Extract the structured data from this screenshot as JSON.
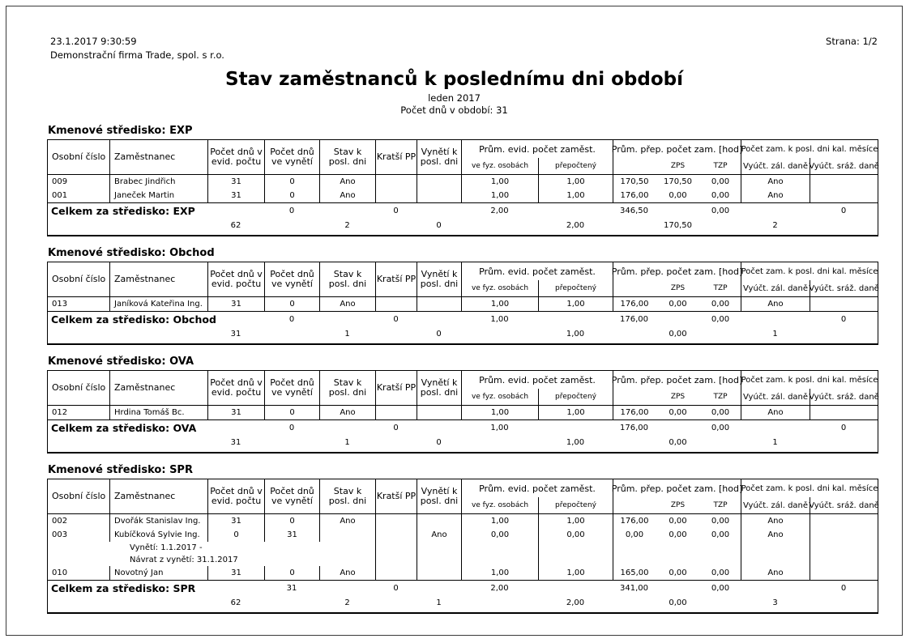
{
  "page": {
    "datetime": "23.1.2017 9:30:59",
    "company": "Demonstrační firma Trade, spol. s r.o.",
    "page_label": "Strana: 1/2",
    "title": "Stav zaměstnanců k poslednímu dni období",
    "subtitle_period": "leden 2017",
    "subtitle_days": "Počet dnů v období: 31"
  },
  "table_header": {
    "cols": [
      "Osobní číslo",
      "Zaměstnanec",
      "Počet dnů v\nevid. počtu",
      "Počet dnů\nve vynětí",
      "Stav k\nposl. dni",
      "Kratší PP",
      "Vynětí k\nposl. dni"
    ],
    "groups": [
      "Prům. evid. počet zaměst.",
      "Prům. přep. počet zam. [hod]",
      "Počet zam. k posl. dni kal. měsíce"
    ],
    "subs": [
      "ve fyz. osobách",
      "přepočtený",
      "",
      "ZPS",
      "TZP",
      "Vyúčt. zál. daně",
      "Vyúčt. sráž. daně"
    ]
  },
  "sections": [
    {
      "title": "Kmenové středisko: EXP",
      "rows": [
        {
          "id": "009",
          "name": "Brabec Jindřich",
          "evid": "31",
          "vyneti": "0",
          "stav": "Ano",
          "kratsi": "",
          "vyneti_posl": "",
          "fyz": "1,00",
          "prep": "1,00",
          "hod": "170,50",
          "zps": "170,50",
          "tzp": "0,00",
          "zal": "Ano",
          "sraz": "",
          "notes": []
        },
        {
          "id": "001",
          "name": "Janeček Martin",
          "evid": "31",
          "vyneti": "0",
          "stav": "Ano",
          "kratsi": "",
          "vyneti_posl": "",
          "fyz": "1,00",
          "prep": "1,00",
          "hod": "176,00",
          "zps": "0,00",
          "tzp": "0,00",
          "zal": "Ano",
          "sraz": "",
          "notes": []
        }
      ],
      "total_label": "Celkem za středisko: EXP",
      "total_row1": {
        "c4": "0",
        "c6": "0",
        "c8": "2,00",
        "c10": "346,50",
        "c12": "0,00",
        "c14": "0"
      },
      "total_row2": {
        "c3": "62",
        "c5": "2",
        "c7": "0",
        "c9": "2,00",
        "c11": "170,50",
        "c13": "2"
      }
    },
    {
      "title": "Kmenové středisko: Obchod",
      "rows": [
        {
          "id": "013",
          "name": "Janíková Kateřina Ing.",
          "evid": "31",
          "vyneti": "0",
          "stav": "Ano",
          "kratsi": "",
          "vyneti_posl": "",
          "fyz": "1,00",
          "prep": "1,00",
          "hod": "176,00",
          "zps": "0,00",
          "tzp": "0,00",
          "zal": "Ano",
          "sraz": "",
          "notes": []
        }
      ],
      "total_label": "Celkem za středisko: Obchod",
      "total_row1": {
        "c4": "0",
        "c6": "0",
        "c8": "1,00",
        "c10": "176,00",
        "c12": "0,00",
        "c14": "0"
      },
      "total_row2": {
        "c3": "31",
        "c5": "1",
        "c7": "0",
        "c9": "1,00",
        "c11": "0,00",
        "c13": "1"
      }
    },
    {
      "title": "Kmenové středisko: OVA",
      "rows": [
        {
          "id": "012",
          "name": "Hrdina Tomáš Bc.",
          "evid": "31",
          "vyneti": "0",
          "stav": "Ano",
          "kratsi": "",
          "vyneti_posl": "",
          "fyz": "1,00",
          "prep": "1,00",
          "hod": "176,00",
          "zps": "0,00",
          "tzp": "0,00",
          "zal": "Ano",
          "sraz": "",
          "notes": []
        }
      ],
      "total_label": "Celkem za středisko: OVA",
      "total_row1": {
        "c4": "0",
        "c6": "0",
        "c8": "1,00",
        "c10": "176,00",
        "c12": "0,00",
        "c14": "0"
      },
      "total_row2": {
        "c3": "31",
        "c5": "1",
        "c7": "0",
        "c9": "1,00",
        "c11": "0,00",
        "c13": "1"
      }
    },
    {
      "title": "Kmenové středisko: SPR",
      "rows": [
        {
          "id": "002",
          "name": "Dvořák Stanislav Ing.",
          "evid": "31",
          "vyneti": "0",
          "stav": "Ano",
          "kratsi": "",
          "vyneti_posl": "",
          "fyz": "1,00",
          "prep": "1,00",
          "hod": "176,00",
          "zps": "0,00",
          "tzp": "0,00",
          "zal": "Ano",
          "sraz": "",
          "notes": []
        },
        {
          "id": "003",
          "name": "Kubíčková Sylvie Ing.",
          "evid": "0",
          "vyneti": "31",
          "stav": "",
          "kratsi": "",
          "vyneti_posl": "Ano",
          "fyz": "0,00",
          "prep": "0,00",
          "hod": "0,00",
          "zps": "0,00",
          "tzp": "0,00",
          "zal": "Ano",
          "sraz": "",
          "notes": [
            "Vynětí: 1.1.2017 -",
            "Návrat z vynětí: 31.1.2017"
          ]
        },
        {
          "id": "010",
          "name": "Novotný Jan",
          "evid": "31",
          "vyneti": "0",
          "stav": "Ano",
          "kratsi": "",
          "vyneti_posl": "",
          "fyz": "1,00",
          "prep": "1,00",
          "hod": "165,00",
          "zps": "0,00",
          "tzp": "0,00",
          "zal": "Ano",
          "sraz": "",
          "notes": []
        }
      ],
      "total_label": "Celkem za středisko: SPR",
      "total_row1": {
        "c4": "31",
        "c6": "0",
        "c8": "2,00",
        "c10": "341,00",
        "c12": "0,00",
        "c14": "0"
      },
      "total_row2": {
        "c3": "62",
        "c5": "2",
        "c7": "1",
        "c9": "2,00",
        "c11": "0,00",
        "c13": "3"
      }
    }
  ]
}
